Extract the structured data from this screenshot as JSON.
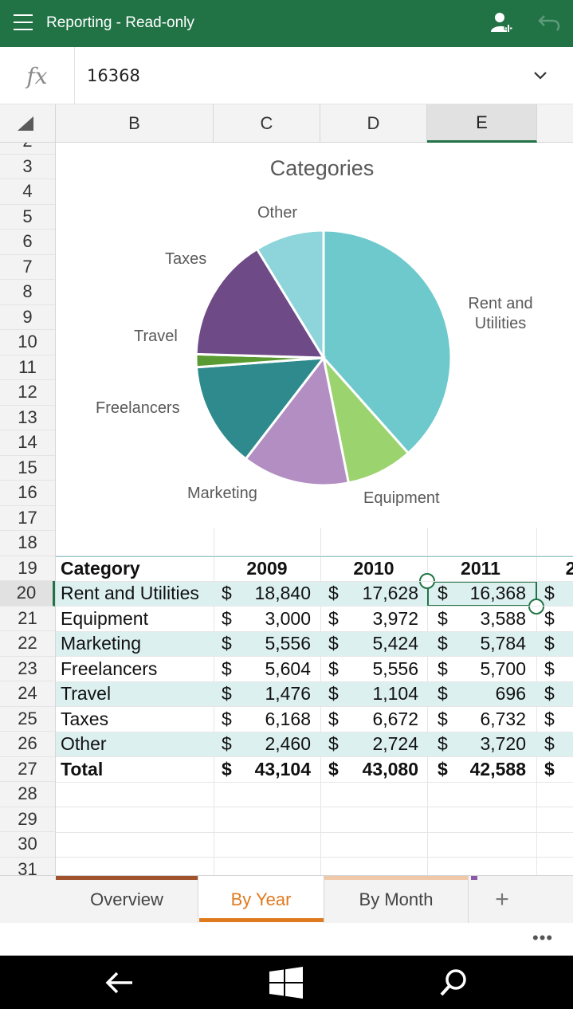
{
  "titlebar": {
    "title": "Reporting - Read-only",
    "icons": [
      "hamburger-menu-icon",
      "add-person-icon",
      "undo-icon"
    ],
    "color": "#217346"
  },
  "formula_bar": {
    "fx_label": "fx",
    "value": "16368",
    "chevron": "chevron-down-icon"
  },
  "columns": [
    "B",
    "C",
    "D",
    "E"
  ],
  "selected_column": "E",
  "rows": [
    "2",
    "3",
    "4",
    "5",
    "6",
    "7",
    "8",
    "9",
    "10",
    "11",
    "12",
    "13",
    "14",
    "15",
    "16",
    "17",
    "18",
    "19",
    "20",
    "21",
    "22",
    "23",
    "24",
    "25",
    "26",
    "27",
    "28",
    "29",
    "30",
    "31"
  ],
  "selected_row": "20",
  "chart_data": {
    "type": "pie",
    "title": "Categories",
    "labels": [
      "Rent and Utilities",
      "Equipment",
      "Marketing",
      "Freelancers",
      "Travel",
      "Taxes",
      "Other"
    ],
    "values": [
      16368,
      3588,
      5784,
      5700,
      696,
      6732,
      3720
    ],
    "colors": [
      "#6ec9cc",
      "#9bd36f",
      "#b28ec2",
      "#2e8a8c",
      "#5a9a32",
      "#6e4a86",
      "#8dd5da"
    ],
    "legend": "none"
  },
  "table": {
    "header": {
      "category": "Category",
      "years": [
        "2009",
        "2010",
        "2011"
      ]
    },
    "currency": "$",
    "rows": [
      {
        "category": "Rent and Utilities",
        "values": [
          "18,840",
          "17,628",
          "16,368"
        ]
      },
      {
        "category": "Equipment",
        "values": [
          "3,000",
          "3,972",
          "3,588"
        ]
      },
      {
        "category": "Marketing",
        "values": [
          "5,556",
          "5,424",
          "5,784"
        ]
      },
      {
        "category": "Freelancers",
        "values": [
          "5,604",
          "5,556",
          "5,700"
        ]
      },
      {
        "category": "Travel",
        "values": [
          "1,476",
          "1,104",
          "696"
        ]
      },
      {
        "category": "Taxes",
        "values": [
          "6,168",
          "6,672",
          "6,732"
        ]
      },
      {
        "category": "Other",
        "values": [
          "2,460",
          "2,724",
          "3,720"
        ]
      }
    ],
    "total": {
      "category": "Total",
      "values": [
        "43,104",
        "43,080",
        "42,588"
      ]
    },
    "band_color": "#ddf0f0"
  },
  "sheet_tabs": {
    "tabs": [
      {
        "label": "Overview",
        "color": "#a0522d"
      },
      {
        "label": "By Year",
        "color": "#e07a1f"
      },
      {
        "label": "By Month",
        "color": "#f0c8a8"
      }
    ],
    "active": "By Year",
    "add_label": "+"
  },
  "statusbar": {
    "more_label": "•••"
  },
  "navbar": {
    "icons": [
      "back-arrow-icon",
      "windows-start-icon",
      "search-icon"
    ]
  }
}
